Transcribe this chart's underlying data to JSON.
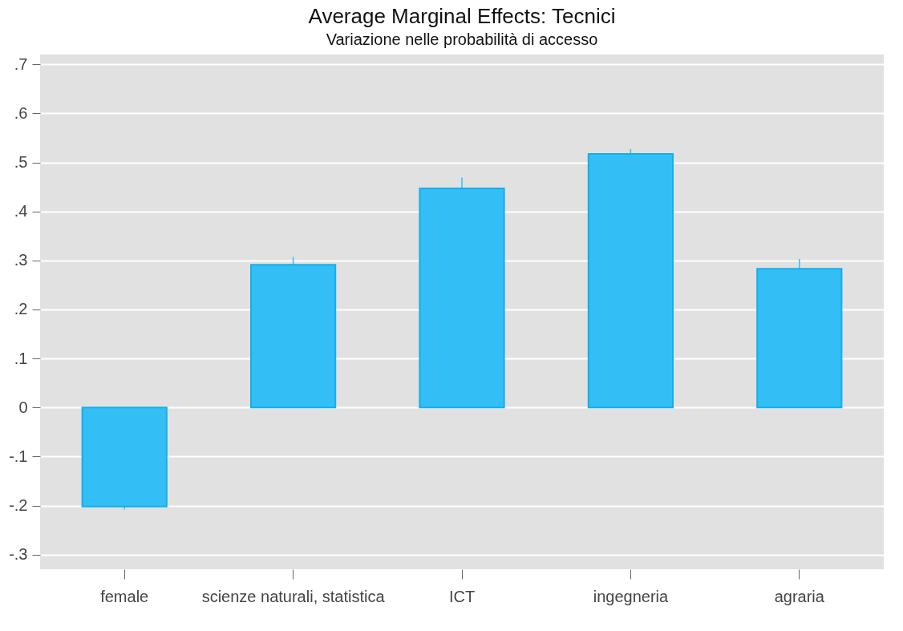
{
  "chart_data": {
    "type": "bar",
    "title": "Average Marginal Effects: Tecnici",
    "subtitle": "Variazione nelle probabilità di accesso",
    "categories": [
      "female",
      "scienze naturali, statistica",
      "ICT",
      "ingegneria",
      "agraria"
    ],
    "values": [
      -0.202,
      0.291,
      0.447,
      0.517,
      0.283
    ],
    "errors": [
      0.006,
      0.016,
      0.022,
      0.01,
      0.02
    ],
    "color": "#33bff5",
    "ylim": [
      -0.33,
      0.72
    ],
    "yticks": [
      {
        "value": -0.3,
        "label": "-.3"
      },
      {
        "value": -0.2,
        "label": "-.2"
      },
      {
        "value": -0.1,
        "label": "-.1"
      },
      0,
      {
        "value": 0.1,
        "label": ".1"
      },
      {
        "value": 0.2,
        "label": ".2"
      },
      {
        "value": 0.3,
        "label": ".3"
      },
      {
        "value": 0.4,
        "label": ".4"
      },
      {
        "value": 0.5,
        "label": ".5"
      },
      {
        "value": 0.6,
        "label": ".6"
      },
      {
        "value": 0.7,
        "label": ".7"
      }
    ],
    "grid": "y"
  }
}
